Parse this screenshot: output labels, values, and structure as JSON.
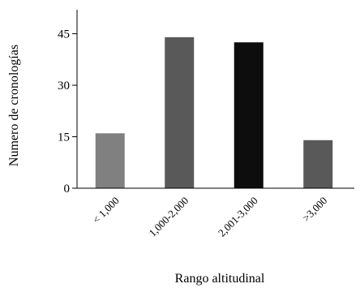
{
  "chart_data": {
    "type": "bar",
    "title": "",
    "xlabel": "Rango altitudinal",
    "ylabel": "Numero de cronologías",
    "categories": [
      "< 1,000",
      "1,000-2,000",
      "2,001-3,000",
      ">3,000"
    ],
    "values": [
      16,
      44,
      42.5,
      14
    ],
    "ylim": [
      0,
      52
    ],
    "yticks": [
      0,
      15,
      30,
      45
    ],
    "grid": false,
    "legend": "none",
    "bar_colors": [
      "#808080",
      "#595959",
      "#0d0d0d",
      "#595959"
    ]
  }
}
